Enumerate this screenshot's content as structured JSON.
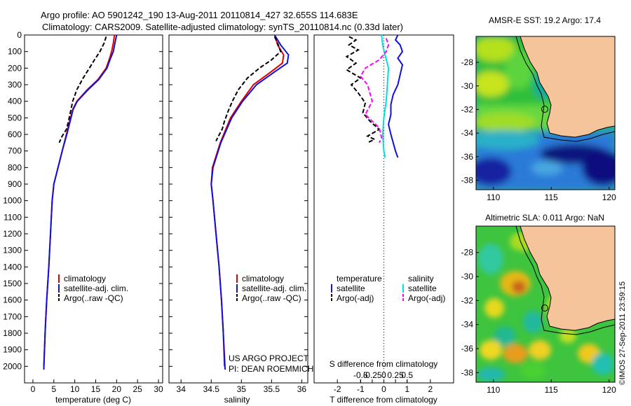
{
  "figure": {
    "title_line1": "Argo profile: AO 5901242_190 13-Aug-2011 20110814_427 32.655S 114.683E",
    "title_line2": "Climatology: CARS2009. Satellite-adjusted climatology: synTS_20110814.nc (0.33d later)",
    "credit": "US ARGO PROJECT",
    "pi": "PI: DEAN ROEMMICH",
    "timestamp": "©IMOS 27-Sep-2011 23:59:15"
  },
  "colors": {
    "climatology": "#e00000",
    "satellite": "#1010e0",
    "argo": "#000000",
    "sat_salinity": "#00e0e0",
    "argo_salinity": "#ff00ff",
    "land": "#f5c49b"
  },
  "chart_data": [
    {
      "id": "temperature",
      "type": "line",
      "xlabel": "temperature (deg C)",
      "ylabel": "",
      "xlim": [
        -2,
        31
      ],
      "ylim": [
        2100,
        0
      ],
      "xticks": [
        0,
        5,
        10,
        15,
        20,
        25,
        30
      ],
      "yticks": [
        0,
        100,
        200,
        300,
        400,
        500,
        600,
        700,
        800,
        900,
        1000,
        1100,
        1200,
        1300,
        1400,
        1500,
        1600,
        1700,
        1800,
        1900,
        2000
      ],
      "legend": [
        "climatology",
        "satellite-adj. clim.",
        "Argo(..raw -QC)"
      ],
      "series": [
        {
          "name": "climatology",
          "style": "solid",
          "color": "#e00000",
          "points": [
            [
              19.5,
              0
            ],
            [
              19.2,
              50
            ],
            [
              18.8,
              100
            ],
            [
              18.2,
              150
            ],
            [
              17.5,
              200
            ],
            [
              15.5,
              270
            ],
            [
              13,
              330
            ],
            [
              10.5,
              400
            ],
            [
              9.5,
              450
            ],
            [
              9,
              500
            ],
            [
              8,
              600
            ],
            [
              7,
              700
            ],
            [
              6,
              800
            ],
            [
              5,
              900
            ],
            [
              4.6,
              1000
            ],
            [
              4.2,
              1200
            ],
            [
              3.8,
              1400
            ],
            [
              3.3,
              1600
            ],
            [
              2.9,
              1800
            ],
            [
              2.6,
              2000
            ]
          ]
        },
        {
          "name": "satellite-adj. clim.",
          "style": "solid",
          "color": "#1010e0",
          "points": [
            [
              20,
              0
            ],
            [
              19.6,
              50
            ],
            [
              19.2,
              100
            ],
            [
              18.4,
              150
            ],
            [
              17.7,
              200
            ],
            [
              15.7,
              270
            ],
            [
              13.2,
              330
            ],
            [
              10.6,
              400
            ],
            [
              9.6,
              450
            ],
            [
              9.1,
              500
            ],
            [
              8.1,
              600
            ],
            [
              7,
              700
            ],
            [
              6,
              800
            ],
            [
              5,
              900
            ],
            [
              4.6,
              1000
            ],
            [
              4.2,
              1200
            ],
            [
              3.8,
              1400
            ],
            [
              3.3,
              1600
            ],
            [
              2.9,
              1800
            ],
            [
              2.6,
              2020
            ]
          ]
        },
        {
          "name": "Argo(..raw -QC)",
          "style": "dashed",
          "color": "#000000",
          "points": [
            [
              17.5,
              10
            ],
            [
              17,
              50
            ],
            [
              16,
              100
            ],
            [
              14.7,
              150
            ],
            [
              13.5,
              200
            ],
            [
              12,
              260
            ],
            [
              10.5,
              330
            ],
            [
              9.5,
              400
            ],
            [
              9,
              460
            ],
            [
              8.5,
              520
            ],
            [
              8,
              570
            ],
            [
              7,
              610
            ],
            [
              6.3,
              650
            ]
          ]
        }
      ]
    },
    {
      "id": "salinity",
      "type": "line",
      "xlabel": "salinity",
      "ylabel": "",
      "xlim": [
        33.8,
        36.1
      ],
      "ylim": [
        2100,
        0
      ],
      "xticks": [
        34,
        34.5,
        35,
        35.5,
        36
      ],
      "xtick_labels": [
        "34",
        "34.5",
        "35",
        "35.5",
        "36"
      ],
      "legend": [
        "climatology",
        "satellite-adj. clim.",
        "Argo(..raw -QC)"
      ],
      "series": [
        {
          "name": "climatology",
          "style": "solid",
          "color": "#e00000",
          "points": [
            [
              35.55,
              0
            ],
            [
              35.6,
              60
            ],
            [
              35.7,
              120
            ],
            [
              35.68,
              170
            ],
            [
              35.5,
              220
            ],
            [
              35.2,
              300
            ],
            [
              35.0,
              400
            ],
            [
              34.82,
              500
            ],
            [
              34.65,
              650
            ],
            [
              34.52,
              800
            ],
            [
              34.5,
              900
            ],
            [
              34.53,
              1000
            ],
            [
              34.58,
              1200
            ],
            [
              34.63,
              1400
            ],
            [
              34.67,
              1600
            ],
            [
              34.7,
              1800
            ],
            [
              34.72,
              2000
            ]
          ]
        },
        {
          "name": "satellite-adj. clim.",
          "style": "solid",
          "color": "#1010e0",
          "points": [
            [
              35.55,
              0
            ],
            [
              35.65,
              60
            ],
            [
              35.78,
              120
            ],
            [
              35.76,
              170
            ],
            [
              35.56,
              220
            ],
            [
              35.25,
              300
            ],
            [
              35.02,
              400
            ],
            [
              34.84,
              500
            ],
            [
              34.66,
              650
            ],
            [
              34.53,
              800
            ],
            [
              34.5,
              900
            ],
            [
              34.53,
              1000
            ],
            [
              34.58,
              1200
            ],
            [
              34.63,
              1400
            ],
            [
              34.67,
              1600
            ],
            [
              34.7,
              1800
            ],
            [
              34.73,
              2020
            ]
          ]
        },
        {
          "name": "Argo(..raw -QC)",
          "style": "dashed",
          "color": "#000000",
          "points": [
            [
              35.55,
              10
            ],
            [
              35.6,
              50
            ],
            [
              35.65,
              100
            ],
            [
              35.5,
              150
            ],
            [
              35.3,
              200
            ],
            [
              35.1,
              260
            ],
            [
              34.95,
              330
            ],
            [
              34.85,
              400
            ],
            [
              34.78,
              460
            ],
            [
              34.72,
              520
            ],
            [
              34.68,
              570
            ],
            [
              34.62,
              610
            ],
            [
              34.58,
              640
            ]
          ]
        }
      ]
    },
    {
      "id": "difference",
      "type": "line",
      "xlabel": "T difference from climatology",
      "xlabel2": "S difference from climatology",
      "xlim": [
        -3,
        3
      ],
      "ylim": [
        2100,
        0
      ],
      "xticks": [
        -2,
        -1,
        0,
        1,
        2
      ],
      "xtick_labels": [
        "-2",
        "-1",
        "0",
        "1",
        "2"
      ],
      "xticks2": [
        -1,
        -0.5,
        0,
        0.5,
        1
      ],
      "xtick2_labels": [
        "-0.5",
        "-0.25",
        "0",
        "0.25",
        "0.5"
      ],
      "legend_headers": [
        "temperature",
        "salinity"
      ],
      "legend": [
        "satellite",
        "Argo(-adj)",
        "satellite",
        "Argo(-adj)"
      ],
      "series": [
        {
          "name": "satellite",
          "style": "solid",
          "color": "#1010e0",
          "points": [
            [
              0.6,
              0
            ],
            [
              0.5,
              30
            ],
            [
              0.7,
              60
            ],
            [
              0.8,
              100
            ],
            [
              0.6,
              140
            ],
            [
              0.8,
              180
            ],
            [
              0.7,
              240
            ],
            [
              0.6,
              300
            ],
            [
              0.4,
              360
            ],
            [
              0.3,
              420
            ],
            [
              0.3,
              480
            ],
            [
              0.2,
              540
            ],
            [
              0.3,
              600
            ],
            [
              0.4,
              650
            ],
            [
              0.5,
              700
            ],
            [
              0.6,
              740
            ]
          ]
        },
        {
          "name": "Argo(-adj)",
          "style": "dashed",
          "color": "#000000",
          "points": [
            [
              -1.5,
              10
            ],
            [
              -1.2,
              30
            ],
            [
              -1.5,
              60
            ],
            [
              -1.1,
              90
            ],
            [
              -1.6,
              130
            ],
            [
              -1.2,
              170
            ],
            [
              -1.6,
              210
            ],
            [
              -1.0,
              260
            ],
            [
              -1.4,
              300
            ],
            [
              -1.1,
              350
            ],
            [
              -0.8,
              410
            ],
            [
              -0.9,
              470
            ],
            [
              -0.6,
              520
            ],
            [
              -0.2,
              570
            ],
            [
              -0.7,
              610
            ],
            [
              -0.4,
              630
            ],
            [
              -0.7,
              650
            ]
          ]
        },
        {
          "name": "satellite",
          "style": "solid",
          "color": "#00e0e0",
          "points": [
            [
              -0.1,
              0
            ],
            [
              -0.05,
              60
            ],
            [
              0.05,
              120
            ],
            [
              0.2,
              200
            ],
            [
              0.15,
              300
            ],
            [
              0.1,
              400
            ],
            [
              0,
              500
            ],
            [
              -0.05,
              600
            ],
            [
              0,
              700
            ],
            [
              0.05,
              740
            ]
          ]
        },
        {
          "name": "Argo(-adj)",
          "style": "dashed",
          "color": "#ff00ff",
          "points": [
            [
              0.1,
              20
            ],
            [
              0.2,
              60
            ],
            [
              0.1,
              100
            ],
            [
              -0.2,
              150
            ],
            [
              -0.8,
              200
            ],
            [
              -1.0,
              250
            ],
            [
              -0.7,
              300
            ],
            [
              -0.5,
              400
            ],
            [
              -0.8,
              480
            ],
            [
              -0.2,
              560
            ],
            [
              -0.1,
              620
            ],
            [
              -0.2,
              650
            ]
          ]
        }
      ]
    },
    {
      "id": "sst-map",
      "type": "heatmap",
      "title": "AMSR-E SST: 19.2 Argo: 17.4",
      "xlim": [
        108.5,
        120.5
      ],
      "ylim": [
        -38.8,
        -25.8
      ],
      "xticks": [
        110,
        115,
        120
      ],
      "yticks": [
        -28,
        -30,
        -32,
        -34,
        -36,
        -38
      ],
      "marker": [
        114.683,
        -32.655
      ]
    },
    {
      "id": "sla-map",
      "type": "heatmap",
      "title": "Altimetric SLA: 0.011 Argo: NaN",
      "xlim": [
        108.5,
        120.5
      ],
      "ylim": [
        -38.8,
        -25.8
      ],
      "xticks": [
        110,
        115,
        120
      ],
      "yticks": [
        -28,
        -30,
        -32,
        -34,
        -36,
        -38
      ],
      "marker": [
        114.683,
        -32.655
      ]
    }
  ]
}
